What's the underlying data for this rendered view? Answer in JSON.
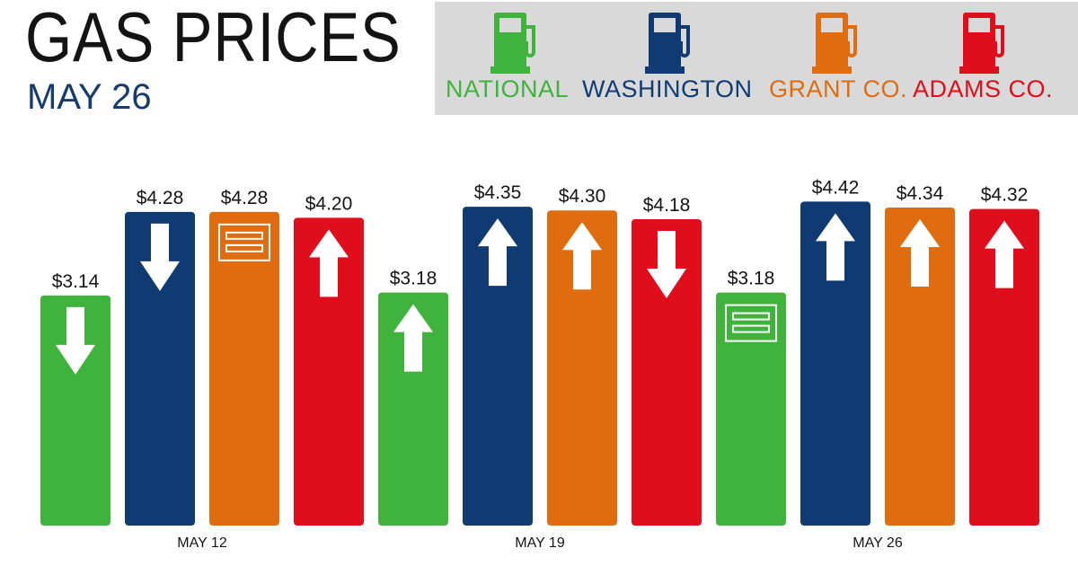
{
  "header": {
    "title": "GAS PRICES",
    "date": "MAY 26"
  },
  "legend": [
    {
      "label": "NATIONAL",
      "color": "#3fb33b",
      "icon": "gas-pump-icon"
    },
    {
      "label": "WASHINGTON",
      "color": "#0f3b72",
      "icon": "gas-pump-icon"
    },
    {
      "label": "GRANT CO.",
      "color": "#e06c10",
      "icon": "gas-pump-icon"
    },
    {
      "label": "ADAMS CO.",
      "color": "#e00d1d",
      "icon": "gas-pump-icon"
    }
  ],
  "chart_data": {
    "type": "bar",
    "categories": [
      "MAY 12",
      "MAY 19",
      "MAY 26"
    ],
    "series": [
      {
        "name": "NATIONAL",
        "color": "#3fb33b",
        "values": [
          3.14,
          3.18,
          3.18
        ],
        "labels": [
          "$3.14",
          "$3.18",
          "$3.18"
        ],
        "trend": [
          "down",
          "up",
          "same"
        ]
      },
      {
        "name": "WASHINGTON",
        "color": "#0f3b72",
        "values": [
          4.28,
          4.35,
          4.42
        ],
        "labels": [
          "$4.28",
          "$4.35",
          "$4.42"
        ],
        "trend": [
          "down",
          "up",
          "up"
        ]
      },
      {
        "name": "GRANT CO.",
        "color": "#e06c10",
        "values": [
          4.28,
          4.3,
          4.34
        ],
        "labels": [
          "$4.28",
          "$4.30",
          "$4.34"
        ],
        "trend": [
          "same",
          "up",
          "up"
        ]
      },
      {
        "name": "ADAMS CO.",
        "color": "#e00d1d",
        "values": [
          4.2,
          4.18,
          4.32
        ],
        "labels": [
          "$4.20",
          "$4.18",
          "$4.32"
        ],
        "trend": [
          "up",
          "down",
          "up"
        ]
      }
    ],
    "ylim": [
      0,
      5.7
    ],
    "grid": false,
    "legend_position": "top-right"
  }
}
